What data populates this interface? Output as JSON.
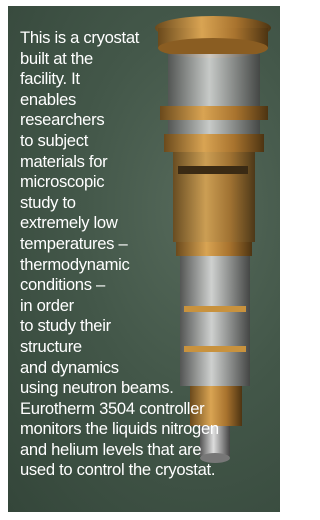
{
  "caption": {
    "lines": [
      "This is a cryostat",
      "built at the",
      "facility. It",
      "enables",
      "researchers",
      "to subject",
      "materials for",
      "microscopic",
      "study to",
      "extremely low",
      "temperatures –",
      "thermodynamic",
      "conditions –",
      "in order",
      "to study their",
      "structure",
      "and dynamics",
      "using neutron beams.",
      "Eurotherm 3504 controller",
      "monitors the liquids nitrogen",
      "and helium levels that are",
      "used to control the cryostat."
    ]
  }
}
